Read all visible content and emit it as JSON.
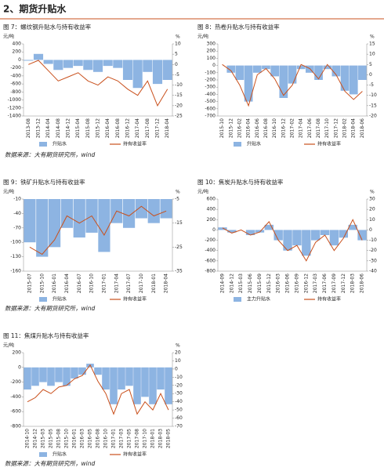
{
  "title": "2、期货升贴水",
  "sources": [
    "数据来源：大有期货研究所，wind",
    "数据来源：大有期货研究所，wind",
    "数据来源：大有期货研究所，wind"
  ],
  "chart_data": [
    {
      "type": "area-line",
      "title": "图 7：螺纹钢升贴水与持有收益率",
      "y_unit": "元/吨",
      "y2_unit": "%",
      "categories": [
        "2013-08",
        "2013-12",
        "2014-04",
        "2014-08",
        "2014-12",
        "2015-04",
        "2015-08",
        "2015-12",
        "2016-04",
        "2016-08",
        "2016-12",
        "2017-04",
        "2017-08",
        "2017-12",
        "2018-04"
      ],
      "series": [
        {
          "name": "升贴水",
          "color": "#8db4e2",
          "values": [
            -20,
            150,
            -100,
            -250,
            -200,
            -150,
            -250,
            -300,
            -150,
            -200,
            -500,
            -700,
            -300,
            -600,
            -500
          ]
        },
        {
          "name": "持有收益率",
          "color": "#c9501c",
          "axis": "y2",
          "values": [
            0,
            2,
            -3,
            -8,
            -6,
            -4,
            -8,
            -10,
            -6,
            -8,
            -12,
            -15,
            -8,
            -20,
            -12
          ]
        }
      ],
      "ylim": [
        -1400,
        400
      ],
      "yticks": [
        -1400,
        -1200,
        -1000,
        -800,
        -600,
        -400,
        -200,
        0,
        200,
        400
      ],
      "y2lim": [
        -25,
        10
      ],
      "y2ticks": [
        -25,
        -20,
        -15,
        -10,
        -5,
        0,
        5,
        10
      ]
    },
    {
      "type": "area-line",
      "title": "图 8：热卷升贴水与持有收益率",
      "y_unit": "元/吨",
      "y2_unit": "%",
      "categories": [
        "2015-10",
        "2015-12",
        "2016-02",
        "2016-04",
        "2016-06",
        "2016-08",
        "2016-10",
        "2016-12",
        "2017-02",
        "2017-04",
        "2017-06",
        "2017-08",
        "2017-10",
        "2017-12",
        "2018-02",
        "2018-04",
        "2018-06"
      ],
      "series": [
        {
          "name": "升贴水",
          "color": "#8db4e2",
          "values": [
            0,
            -100,
            -200,
            -500,
            -100,
            -50,
            -150,
            -450,
            -250,
            -50,
            -100,
            -200,
            -50,
            -150,
            -350,
            -400,
            -200
          ]
        },
        {
          "name": "持有收益率",
          "color": "#c9501c",
          "axis": "y2",
          "values": [
            5,
            2,
            -5,
            -15,
            0,
            3,
            -2,
            -10,
            -5,
            5,
            3,
            -2,
            5,
            0,
            -8,
            -12,
            -8
          ]
        }
      ],
      "ylim": [
        -700,
        300
      ],
      "yticks": [
        -700,
        -600,
        -500,
        -400,
        -300,
        -200,
        -100,
        0,
        100,
        200,
        300
      ],
      "y2lim": [
        -20,
        15
      ],
      "y2ticks": [
        -20,
        -15,
        -10,
        -5,
        0,
        5,
        10,
        15
      ]
    },
    {
      "type": "area-line",
      "title": "图 9：铁矿升贴水与持有收益率",
      "y_unit": "元/吨",
      "y2_unit": "%",
      "categories": [
        "2015-07",
        "2015-10",
        "2016-01",
        "2016-04",
        "2016-07",
        "2016-10",
        "2017-01",
        "2017-04",
        "2017-07",
        "2017-10",
        "2018-01",
        "2018-04"
      ],
      "series": [
        {
          "name": "升贴水",
          "color": "#8db4e2",
          "values": [
            -100,
            -130,
            -110,
            -70,
            -90,
            -80,
            -120,
            -60,
            -70,
            -50,
            -60,
            -50
          ]
        },
        {
          "name": "持有收益率",
          "color": "#c9501c",
          "axis": "y2",
          "values": [
            -25,
            -28,
            -22,
            -12,
            -15,
            -12,
            -20,
            -10,
            -12,
            -8,
            -12,
            -10
          ]
        }
      ],
      "ylim": [
        -160,
        -10
      ],
      "yticks": [
        -160,
        -130,
        -100,
        -70,
        -40,
        -10
      ],
      "y2lim": [
        -35,
        -5
      ],
      "y2ticks": [
        -35,
        -25,
        -15,
        -5
      ]
    },
    {
      "type": "area-line",
      "title": "图 10：焦炭升贴水与持有收益率",
      "y_unit": "元/吨",
      "y2_unit": "%",
      "categories": [
        "2014-09",
        "2014-12",
        "2015-03",
        "2015-06",
        "2015-09",
        "2015-12",
        "2016-03",
        "2016-06",
        "2016-09",
        "2016-12",
        "2017-03",
        "2017-06",
        "2017-09",
        "2017-12",
        "2018-03",
        "2018-06"
      ],
      "series": [
        {
          "name": "主力升贴水",
          "color": "#8db4e2",
          "values": [
            50,
            -50,
            0,
            -100,
            -50,
            100,
            -200,
            -400,
            -300,
            -500,
            -200,
            -100,
            -300,
            -150,
            100,
            -200
          ]
        },
        {
          "name": "持有收益率",
          "color": "#c9501c",
          "axis": "y2",
          "values": [
            2,
            -3,
            0,
            -5,
            -2,
            8,
            -10,
            -20,
            -15,
            -30,
            -12,
            -5,
            -20,
            -8,
            10,
            -10
          ]
        }
      ],
      "ylim": [
        -800,
        600
      ],
      "yticks": [
        -800,
        -600,
        -400,
        -200,
        0,
        200,
        400,
        600
      ],
      "y2lim": [
        -40,
        30
      ],
      "y2ticks": [
        -40,
        -30,
        -20,
        -10,
        0,
        10,
        20,
        30
      ]
    },
    {
      "type": "area-line",
      "title": "图 11：焦煤升贴水与持有收益率",
      "y_unit": "元/吨",
      "y2_unit": "%",
      "categories": [
        "2014-10",
        "2014-12",
        "2015-03",
        "2015-05",
        "2015-08",
        "2015-10",
        "2016-01",
        "2016-03",
        "2016-05",
        "2016-08",
        "2016-10",
        "2017-01",
        "2017-03",
        "2017-05",
        "2017-08",
        "2017-10",
        "2018-01",
        "2018-03",
        "2018-05"
      ],
      "series": [
        {
          "name": "升贴水",
          "color": "#8db4e2",
          "values": [
            -300,
            -250,
            -200,
            -250,
            -200,
            -250,
            -150,
            -100,
            50,
            -100,
            -300,
            -500,
            -300,
            -250,
            -500,
            -400,
            -500,
            -300,
            -500
          ]
        },
        {
          "name": "持有收益率",
          "color": "#c9501c",
          "axis": "y2",
          "values": [
            -40,
            -35,
            -25,
            -30,
            -22,
            -20,
            -12,
            -8,
            5,
            -15,
            -30,
            -55,
            -30,
            -25,
            -55,
            -40,
            -50,
            -30,
            -50
          ]
        }
      ],
      "ylim": [
        -800,
        200
      ],
      "yticks": [
        -800,
        -600,
        -400,
        -200,
        0,
        200
      ],
      "y2lim": [
        -70,
        20
      ],
      "y2ticks": [
        -70,
        -60,
        -50,
        -40,
        -30,
        -20,
        -10,
        0,
        10,
        20
      ]
    }
  ]
}
